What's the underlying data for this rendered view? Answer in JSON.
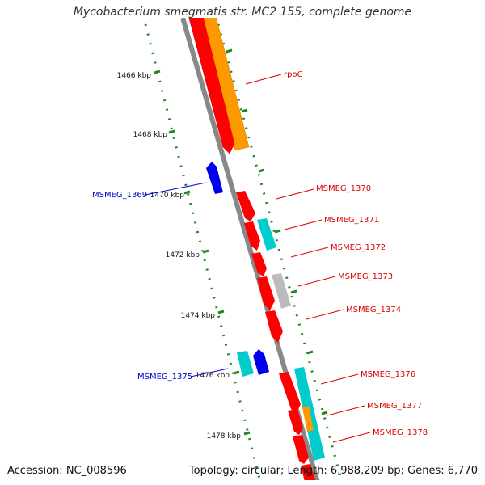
{
  "title": "Mycobacterium smegmatis str. MC2 155, complete genome",
  "accession": "Accession: NC_008596",
  "summary": "Topology: circular; Length: 6,988,209 bp; Genes: 6,770",
  "kbp_labels": [
    "1466 kbp",
    "1468 kbp",
    "1470 kbp",
    "1472 kbp",
    "1474 kbp",
    "1476 kbp",
    "1478 kbp"
  ],
  "gene_labels": {
    "rpoC": "rpoC",
    "msmeg_1369": "MSMEG_1369",
    "msmeg_1370": "MSMEG_1370",
    "msmeg_1371": "MSMEG_1371",
    "msmeg_1372": "MSMEG_1372",
    "msmeg_1373": "MSMEG_1373",
    "msmeg_1374": "MSMEG_1374",
    "msmeg_1375": "MSMEG_1375",
    "msmeg_1376": "MSMEG_1376",
    "msmeg_1377": "MSMEG_1377",
    "msmeg_1378": "MSMEG_1378"
  },
  "colors": {
    "forward_label": "#dd0000",
    "reverse_label": "#0000cc",
    "cds_red": "#ff0000",
    "cds_blue": "#0000ee",
    "cds_orange": "#ff9900",
    "cds_cyan": "#00cccc",
    "cds_gray": "#bbbbbb",
    "ruler": "#228822",
    "backbone": "#888888"
  }
}
